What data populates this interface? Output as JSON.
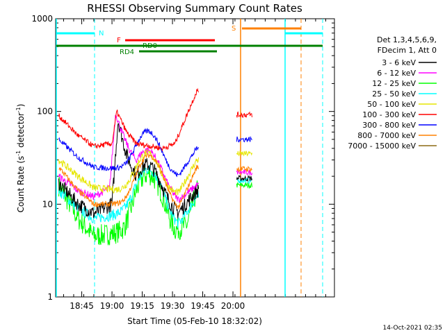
{
  "chart_data": {
    "type": "line",
    "title": "RHESSI Observing Summary Count Rates",
    "xlabel": "Start Time (05-Feb-10 18:32:02)",
    "ylabel_main": "Count Rate (s",
    "ylabel_sup1": "-1",
    "ylabel_mid": " detector",
    "ylabel_sup2": "-1",
    "ylabel_end": ")",
    "y_scale": "log",
    "ylim": [
      1,
      1000
    ],
    "xlim_minutes": [
      18.55,
      20.85
    ],
    "x_ticks": [
      {
        "label": "18:45",
        "hour": 18.75
      },
      {
        "label": "19:00",
        "hour": 19.0
      },
      {
        "label": "19:15",
        "hour": 19.25
      },
      {
        "label": "19:30",
        "hour": 19.5
      },
      {
        "label": "19:45",
        "hour": 19.75
      },
      {
        "label": "20:00",
        "hour": 20.0
      }
    ],
    "y_ticks": [
      {
        "label": "1",
        "value": 1
      },
      {
        "label": "10",
        "value": 10
      },
      {
        "label": "100",
        "value": 100
      },
      {
        "label": "1000",
        "value": 1000
      }
    ],
    "legend_header": [
      "Det 1,3,4,5,6,9,",
      "FDecim 1, Att 0"
    ],
    "series": [
      {
        "name": "3 - 6 keV",
        "color": "#000000"
      },
      {
        "name": "6 - 12 keV",
        "color": "#ff00ff"
      },
      {
        "name": "12 - 25 keV",
        "color": "#00ff00"
      },
      {
        "name": "25 - 50 keV",
        "color": "#00ffff"
      },
      {
        "name": "50 - 100 keV",
        "color": "#e6e600"
      },
      {
        "name": "100 - 300 keV",
        "color": "#ff0000"
      },
      {
        "name": "300 - 800 keV",
        "color": "#0000ff"
      },
      {
        "name": "800 - 7000 keV",
        "color": "#ff8000"
      },
      {
        "name": "7000 - 15000 keV",
        "color": "#8b6914"
      }
    ],
    "annotations": [
      {
        "label": "N",
        "color": "#00ffff"
      },
      {
        "label": "F",
        "color": "#ff0000"
      },
      {
        "label": "RD0",
        "color": "#008000"
      },
      {
        "label": "RD4",
        "color": "#008000"
      },
      {
        "label": "S",
        "color": "#ff8000"
      }
    ],
    "timestamp": "14-Oct-2021 02:35"
  }
}
